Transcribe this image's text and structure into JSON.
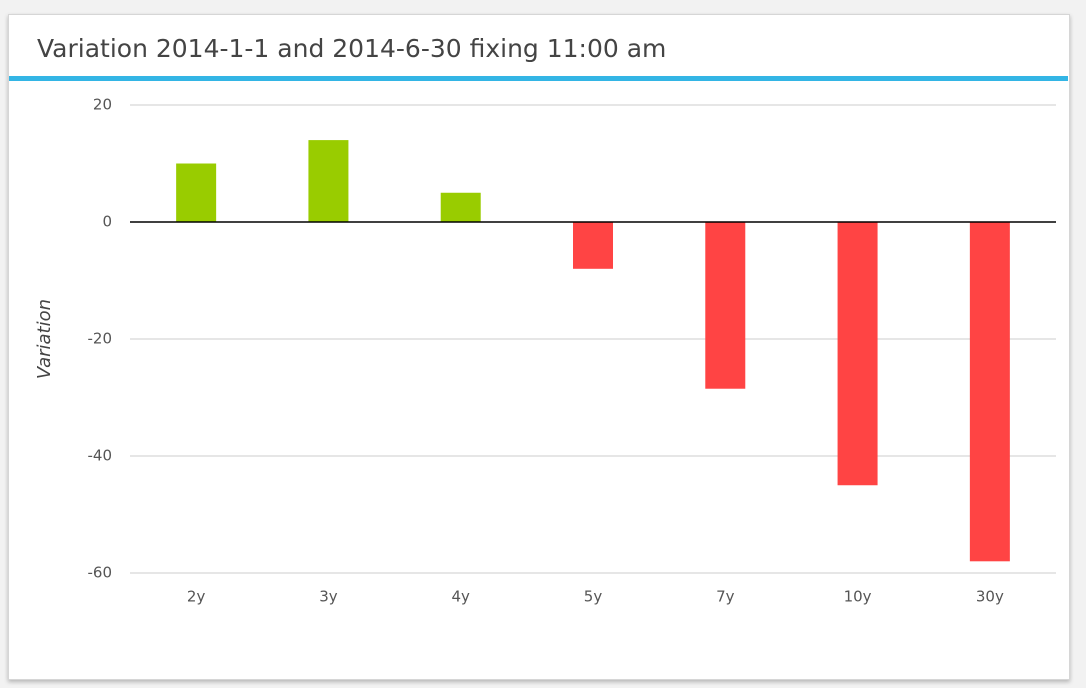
{
  "chart_data": {
    "type": "bar",
    "title": "Variation 2014-1-1 and 2014-6-30 fixing 11:00 am",
    "y_label": "Variation",
    "categories": [
      "2y",
      "3y",
      "4y",
      "5y",
      "7y",
      "10y",
      "30y"
    ],
    "values": [
      10,
      14,
      5,
      -8,
      -28.5,
      -45,
      -58
    ],
    "colors": [
      "#99cc00",
      "#99cc00",
      "#99cc00",
      "#ff4444",
      "#ff4444",
      "#ff4444",
      "#ff4444"
    ],
    "ylim": [
      -60,
      20
    ],
    "yticks": [
      -60,
      -40,
      -20,
      0,
      20
    ],
    "grid": true
  }
}
